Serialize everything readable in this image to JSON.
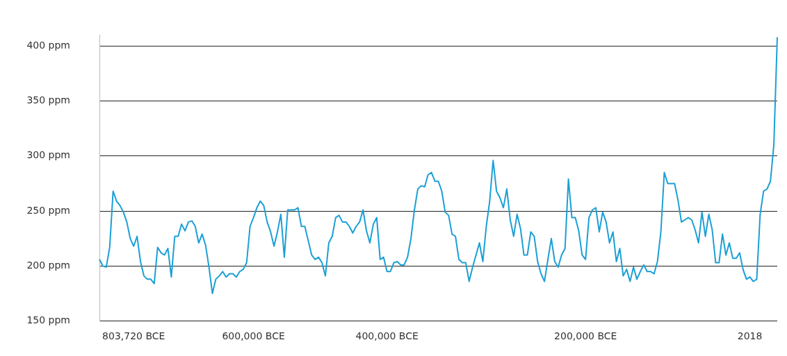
{
  "chart_data": {
    "type": "line",
    "categories": [
      null,
      null,
      null,
      null,
      null,
      null,
      null,
      null,
      null,
      null,
      "803,720 BCE",
      null,
      null,
      null,
      null,
      null,
      null,
      null,
      null,
      null,
      null,
      null,
      null,
      null,
      null,
      null,
      null,
      null,
      null,
      null,
      null,
      null,
      null,
      null,
      null,
      null,
      null,
      null,
      null,
      null,
      null,
      null,
      null,
      null,
      null,
      "600,000 BCE",
      null,
      null,
      null,
      null,
      null,
      null,
      null,
      null,
      null,
      null,
      null,
      null,
      null,
      null,
      null,
      null,
      null,
      null,
      null,
      null,
      null,
      null,
      null,
      null,
      null,
      null,
      null,
      null,
      null,
      null,
      null,
      null,
      null,
      null,
      null,
      null,
      null,
      null,
      "400,000 BCE",
      null,
      null,
      null,
      null,
      null,
      null,
      null,
      null,
      null,
      null,
      null,
      null,
      null,
      null,
      null,
      null,
      null,
      null,
      null,
      null,
      null,
      null,
      null,
      null,
      null,
      null,
      null,
      null,
      null,
      null,
      null,
      null,
      null,
      null,
      null,
      null,
      null,
      null,
      null,
      null,
      null,
      null,
      null,
      null,
      null,
      null,
      null,
      null,
      null,
      null,
      null,
      null,
      null,
      null,
      null,
      null,
      null,
      "200,000 BCE",
      null,
      null,
      null,
      null,
      null,
      null,
      null,
      null,
      null,
      null,
      null,
      null,
      null,
      null,
      null,
      null,
      null,
      null,
      null,
      null,
      null,
      null,
      null,
      null,
      null,
      null,
      null,
      null,
      null,
      null,
      null,
      null,
      null,
      null,
      null,
      null,
      null,
      null,
      null,
      null,
      null,
      null,
      null,
      null,
      null,
      null,
      null,
      "2018",
      null,
      null,
      null,
      null,
      null,
      null,
      null,
      null
    ],
    "values": [
      206,
      200,
      199,
      217,
      268,
      259,
      255,
      249,
      240,
      225,
      218,
      227,
      204,
      191,
      188,
      188,
      184,
      217,
      212,
      210,
      216,
      190,
      227,
      227,
      238,
      232,
      240,
      241,
      236,
      221,
      229,
      219,
      199,
      175,
      188,
      191,
      195,
      190,
      193,
      193,
      190,
      195,
      197,
      203,
      236,
      244,
      253,
      259,
      255,
      240,
      231,
      218,
      231,
      247,
      208,
      251,
      251,
      251,
      253,
      236,
      236,
      223,
      210,
      206,
      208,
      203,
      191,
      221,
      227,
      244,
      246,
      240,
      240,
      236,
      230,
      236,
      240,
      251,
      232,
      221,
      238,
      244,
      206,
      208,
      195,
      195,
      203,
      204,
      201,
      201,
      208,
      225,
      251,
      270,
      273,
      272,
      283,
      285,
      277,
      277,
      268,
      249,
      246,
      229,
      227,
      206,
      203,
      203,
      186,
      199,
      210,
      221,
      204,
      236,
      259,
      296,
      268,
      262,
      253,
      270,
      242,
      227,
      247,
      234,
      210,
      210,
      231,
      227,
      204,
      193,
      186,
      206,
      225,
      204,
      199,
      210,
      216,
      279,
      244,
      244,
      232,
      210,
      206,
      244,
      251,
      253,
      231,
      249,
      240,
      221,
      231,
      204,
      216,
      191,
      197,
      186,
      199,
      188,
      195,
      201,
      195,
      195,
      193,
      204,
      231,
      285,
      275,
      275,
      275,
      260,
      240,
      242,
      244,
      242,
      233,
      221,
      249,
      227,
      247,
      233,
      203,
      203,
      229,
      210,
      221,
      207,
      207,
      212,
      197,
      188,
      190,
      186,
      188,
      247,
      268,
      270,
      277,
      310,
      408
    ],
    "color": "#1a9fd6",
    "marker": "none",
    "ylim": [
      150,
      410
    ],
    "yticks": [
      {
        "value": 150,
        "label": "150 ppm"
      },
      {
        "value": 200,
        "label": "200 ppm"
      },
      {
        "value": 250,
        "label": "250 ppm"
      },
      {
        "value": 300,
        "label": "300 ppm"
      },
      {
        "value": 350,
        "label": "350 ppm"
      },
      {
        "value": 400,
        "label": "400 ppm"
      }
    ],
    "grid": "y"
  }
}
